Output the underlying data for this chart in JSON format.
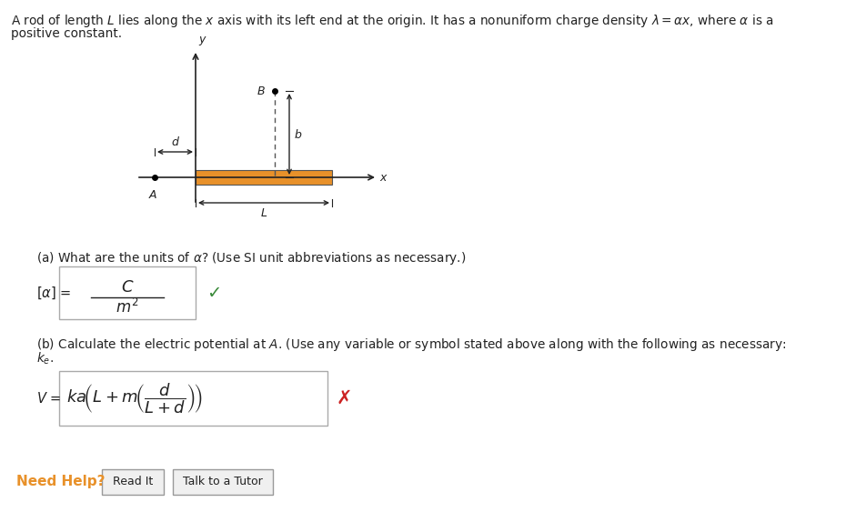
{
  "bg_color": "#ffffff",
  "rod_color": "#E8912A",
  "axis_color": "#222222",
  "dashed_color": "#555555",
  "text_color": "#222222",
  "green_check_color": "#3a8a3a",
  "red_x_color": "#cc2222",
  "need_help_color": "#E8912A",
  "button_face": "#f0f0f0",
  "button_edge": "#999999",
  "box_edge": "#aaaaaa",
  "header_line1": "A rod of length $L$ lies along the $x$ axis with its left end at the origin. It has a nonuniform charge density $\\lambda = \\alpha x$, where $\\alpha$ is a",
  "header_line2": "positive constant.",
  "part_a_label": "(a) What are the units of $\\alpha$? (Use SI unit abbreviations as necessary.)",
  "part_b_label": "(b) Calculate the electric potential at $A$. (Use any variable or symbol stated above along with the following as necessary:",
  "part_b_label2": "$k_e$.",
  "need_help_text": "Need Help?",
  "read_it_text": "Read It",
  "talk_text": "Talk to a Tutor"
}
